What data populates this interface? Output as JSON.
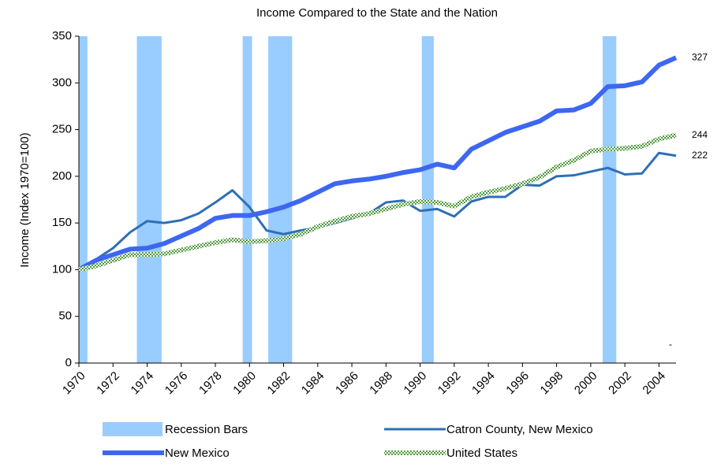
{
  "chart_data": {
    "type": "line",
    "title": "Income Compared to the State and the Nation",
    "y_label": "Income (Index 1970=100)",
    "x": [
      1970,
      1971,
      1972,
      1973,
      1974,
      1975,
      1976,
      1977,
      1978,
      1979,
      1980,
      1981,
      1982,
      1983,
      1984,
      1985,
      1986,
      1987,
      1988,
      1989,
      1990,
      1991,
      1992,
      1993,
      1994,
      1995,
      1996,
      1997,
      1998,
      1999,
      2000,
      2001,
      2002,
      2003,
      2004,
      2005
    ],
    "xlim": [
      1970,
      2005
    ],
    "xticks": [
      1970,
      1972,
      1974,
      1976,
      1978,
      1980,
      1982,
      1984,
      1986,
      1988,
      1990,
      1992,
      1994,
      1996,
      1998,
      2000,
      2002,
      2004
    ],
    "ylim": [
      0,
      350
    ],
    "yticks": [
      0,
      50,
      100,
      150,
      200,
      250,
      300,
      350
    ],
    "recessions": {
      "name": "Recession Bars",
      "color": "#99ccff",
      "ranges": [
        [
          1970,
          1970.5
        ],
        [
          1973.4,
          1974.85
        ],
        [
          1979.6,
          1980.15
        ],
        [
          1981.1,
          1982.5
        ],
        [
          1990.1,
          1990.8
        ],
        [
          2000.7,
          2001.5
        ]
      ]
    },
    "series": [
      {
        "name": "Catron County, New Mexico",
        "color": "#2f6fb5",
        "style": "solid",
        "width": 3,
        "values": [
          100,
          111,
          123,
          140,
          152,
          150,
          153,
          160,
          172,
          185,
          167,
          142,
          138,
          142,
          145,
          150,
          155,
          160,
          172,
          174,
          163,
          165,
          157,
          173,
          178,
          178,
          191,
          190,
          200,
          201,
          205,
          209,
          202,
          203,
          225,
          222
        ]
      },
      {
        "name": "New Mexico",
        "color": "#3d67f2",
        "style": "solid",
        "width": 6,
        "values": [
          100,
          110,
          116,
          122,
          123,
          128,
          136,
          144,
          155,
          158,
          158,
          162,
          167,
          174,
          183,
          192,
          195,
          197,
          200,
          204,
          207,
          213,
          209,
          229,
          238,
          247,
          253,
          259,
          270,
          271,
          278,
          296,
          297,
          301,
          319,
          327
        ]
      },
      {
        "name": "United States",
        "color": "#5fa84a",
        "style": "checkered",
        "width": 6,
        "values": [
          100,
          104,
          110,
          116,
          116,
          117,
          121,
          125,
          129,
          132,
          130,
          131,
          133,
          138,
          146,
          152,
          157,
          160,
          165,
          170,
          173,
          172,
          168,
          178,
          183,
          187,
          192,
          199,
          210,
          217,
          227,
          229,
          230,
          232,
          240,
          244
        ]
      }
    ],
    "annotation": "-"
  }
}
